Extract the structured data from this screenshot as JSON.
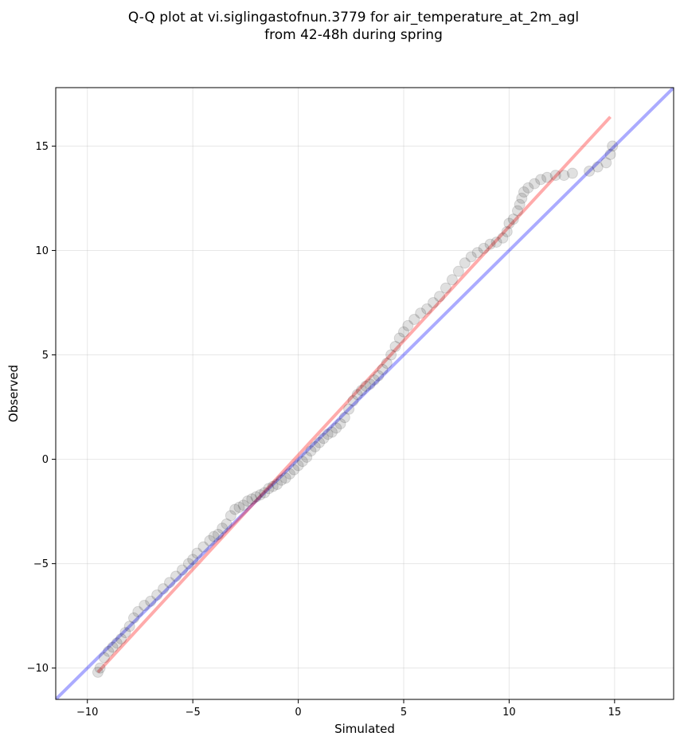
{
  "chart_data": {
    "type": "scatter",
    "title_line1": "Q-Q plot at vi.siglingastofnun.3779 for air_temperature_at_2m_agl",
    "title_line2": "from 42-48h during spring",
    "xlabel": "Simulated",
    "ylabel": "Observed",
    "xlim": [
      -11.5,
      17.8
    ],
    "ylim": [
      -11.5,
      17.8
    ],
    "xticks": [
      -10,
      -5,
      0,
      5,
      10,
      15
    ],
    "yticks": [
      -10,
      -5,
      0,
      5,
      10,
      15
    ],
    "xtick_labels": [
      "−10",
      "−5",
      "0",
      "5",
      "10",
      "15"
    ],
    "ytick_labels": [
      "−10",
      "−5",
      "0",
      "5",
      "10",
      "15"
    ],
    "grid": true,
    "reference_line": {
      "color": "#0000ff",
      "alpha": 0.33,
      "x": [
        -11.5,
        17.8
      ],
      "y": [
        -11.5,
        17.8
      ]
    },
    "fit_line": {
      "color": "#ff0000",
      "alpha": 0.33,
      "x": [
        -9.5,
        14.8
      ],
      "y": [
        -10.2,
        16.4
      ]
    },
    "point_color": "#000000",
    "points": [
      [
        -9.5,
        -10.2
      ],
      [
        -9.4,
        -10.0
      ],
      [
        -9.2,
        -9.5
      ],
      [
        -9.0,
        -9.2
      ],
      [
        -8.8,
        -9.0
      ],
      [
        -8.6,
        -8.8
      ],
      [
        -8.4,
        -8.6
      ],
      [
        -8.2,
        -8.3
      ],
      [
        -8.0,
        -8.0
      ],
      [
        -7.8,
        -7.6
      ],
      [
        -7.6,
        -7.3
      ],
      [
        -7.3,
        -7.0
      ],
      [
        -7.0,
        -6.8
      ],
      [
        -6.7,
        -6.5
      ],
      [
        -6.4,
        -6.2
      ],
      [
        -6.1,
        -5.9
      ],
      [
        -5.8,
        -5.6
      ],
      [
        -5.5,
        -5.3
      ],
      [
        -5.2,
        -5.0
      ],
      [
        -5.0,
        -4.8
      ],
      [
        -4.8,
        -4.5
      ],
      [
        -4.5,
        -4.2
      ],
      [
        -4.2,
        -3.9
      ],
      [
        -4.0,
        -3.7
      ],
      [
        -3.8,
        -3.6
      ],
      [
        -3.6,
        -3.3
      ],
      [
        -3.4,
        -3.1
      ],
      [
        -3.2,
        -2.7
      ],
      [
        -3.0,
        -2.4
      ],
      [
        -2.8,
        -2.3
      ],
      [
        -2.6,
        -2.2
      ],
      [
        -2.4,
        -2.0
      ],
      [
        -2.2,
        -1.9
      ],
      [
        -2.0,
        -1.8
      ],
      [
        -1.8,
        -1.7
      ],
      [
        -1.6,
        -1.6
      ],
      [
        -1.4,
        -1.4
      ],
      [
        -1.2,
        -1.3
      ],
      [
        -1.0,
        -1.2
      ],
      [
        -0.8,
        -1.0
      ],
      [
        -0.6,
        -0.9
      ],
      [
        -0.4,
        -0.7
      ],
      [
        -0.2,
        -0.5
      ],
      [
        0.0,
        -0.3
      ],
      [
        0.2,
        -0.1
      ],
      [
        0.4,
        0.1
      ],
      [
        0.6,
        0.4
      ],
      [
        0.8,
        0.6
      ],
      [
        1.0,
        0.8
      ],
      [
        1.2,
        1.0
      ],
      [
        1.4,
        1.2
      ],
      [
        1.6,
        1.3
      ],
      [
        1.8,
        1.5
      ],
      [
        2.0,
        1.7
      ],
      [
        2.2,
        2.0
      ],
      [
        2.4,
        2.4
      ],
      [
        2.6,
        2.8
      ],
      [
        2.8,
        3.1
      ],
      [
        3.0,
        3.3
      ],
      [
        3.2,
        3.5
      ],
      [
        3.4,
        3.6
      ],
      [
        3.6,
        3.8
      ],
      [
        3.8,
        4.0
      ],
      [
        4.0,
        4.3
      ],
      [
        4.2,
        4.6
      ],
      [
        4.4,
        5.0
      ],
      [
        4.6,
        5.4
      ],
      [
        4.8,
        5.8
      ],
      [
        5.0,
        6.1
      ],
      [
        5.2,
        6.4
      ],
      [
        5.5,
        6.7
      ],
      [
        5.8,
        7.0
      ],
      [
        6.1,
        7.2
      ],
      [
        6.4,
        7.5
      ],
      [
        6.7,
        7.8
      ],
      [
        7.0,
        8.2
      ],
      [
        7.3,
        8.6
      ],
      [
        7.6,
        9.0
      ],
      [
        7.9,
        9.4
      ],
      [
        8.2,
        9.7
      ],
      [
        8.5,
        9.9
      ],
      [
        8.8,
        10.1
      ],
      [
        9.1,
        10.3
      ],
      [
        9.4,
        10.4
      ],
      [
        9.7,
        10.6
      ],
      [
        9.9,
        10.9
      ],
      [
        10.0,
        11.3
      ],
      [
        10.2,
        11.5
      ],
      [
        10.4,
        11.9
      ],
      [
        10.5,
        12.2
      ],
      [
        10.6,
        12.5
      ],
      [
        10.7,
        12.8
      ],
      [
        10.9,
        13.0
      ],
      [
        11.2,
        13.2
      ],
      [
        11.5,
        13.4
      ],
      [
        11.8,
        13.5
      ],
      [
        12.2,
        13.6
      ],
      [
        12.6,
        13.6
      ],
      [
        13.0,
        13.7
      ],
      [
        13.8,
        13.8
      ],
      [
        14.2,
        14.0
      ],
      [
        14.6,
        14.2
      ],
      [
        14.8,
        14.6
      ],
      [
        14.9,
        15.0
      ]
    ]
  }
}
